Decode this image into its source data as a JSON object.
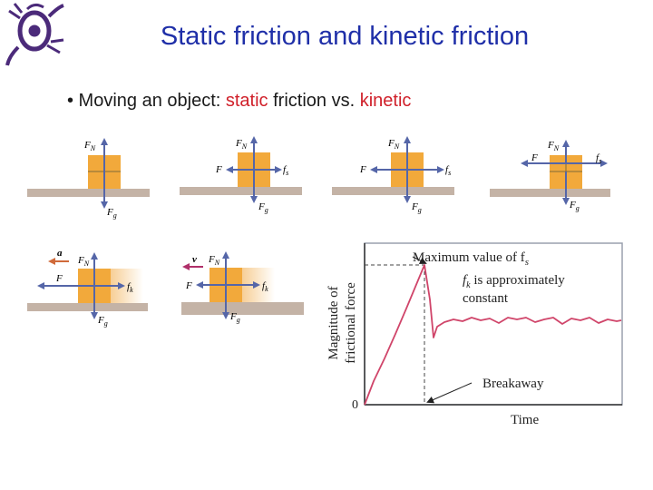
{
  "title": "Static friction and kinetic friction",
  "bullet": {
    "prefix": "• Moving an object: ",
    "static_word": "static",
    "middle": " friction vs. ",
    "kinetic_word": "kinetic"
  },
  "force_labels": {
    "normal": "F",
    "normal_sub": "N",
    "applied": "F",
    "gravity": "F",
    "gravity_sub": "g",
    "static": "f",
    "static_sub": "s",
    "kinetic": "f",
    "kinetic_sub": "k",
    "accel": "a",
    "velocity": "v"
  },
  "graph": {
    "ylabel_line1": "Magnitude of",
    "ylabel_line2": "frictional force",
    "xlabel": "Time",
    "origin": "0",
    "max_label": "Maximum value of f",
    "max_sub": "s",
    "kinetic_note_sym": "f",
    "kinetic_note_sub": "k",
    "kinetic_note_line1": " is approximately",
    "kinetic_note_line2": "constant",
    "breakaway": "Breakaway"
  },
  "colors": {
    "title": "#1f2fa8",
    "highlight": "#d0202a",
    "block": "#f2a93b",
    "arrow": "#5566a8",
    "curve": "#d0456a",
    "ground": "#c4b3a6"
  }
}
